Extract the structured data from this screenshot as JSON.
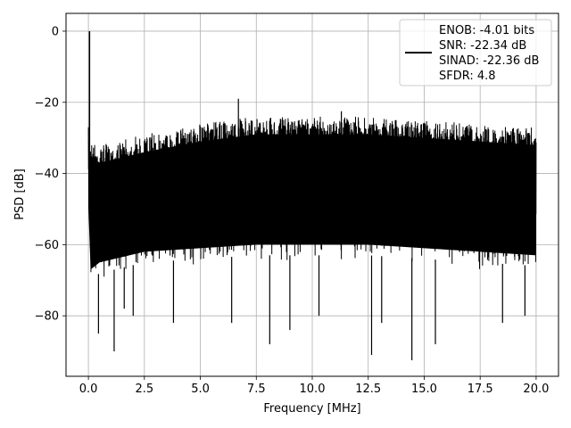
{
  "chart_data": {
    "type": "line",
    "xlabel": "Frequency [MHz]",
    "ylabel": "PSD [dB]",
    "xlim": [
      -1.0,
      21.0
    ],
    "ylim": [
      -97,
      5
    ],
    "xticks": [
      0.0,
      2.5,
      5.0,
      7.5,
      10.0,
      12.5,
      15.0,
      17.5,
      20.0
    ],
    "xtick_labels": [
      "0.0",
      "2.5",
      "5.0",
      "7.5",
      "10.0",
      "12.5",
      "15.0",
      "17.5",
      "20.0"
    ],
    "yticks": [
      0,
      -20,
      -40,
      -60,
      -80
    ],
    "ytick_labels": [
      "0",
      "−20",
      "−40",
      "−60",
      "−80"
    ],
    "grid": true,
    "legend_position": "top-right",
    "series": [
      {
        "name": "",
        "legend_lines": [
          "ENOB: -4.01 bits",
          "SNR: -22.34 dB",
          "SINAD: -22.36 dB",
          "SFDR: 4.8"
        ],
        "color": "#000000",
        "style": "dense noise floor spectrum",
        "fundamental": {
          "x": 0.05,
          "y": 0
        },
        "upper_envelope": {
          "x": [
            0.0,
            0.1,
            0.5,
            2.5,
            5.0,
            7.5,
            10.0,
            12.5,
            15.0,
            17.5,
            20.0
          ],
          "y": [
            -27,
            -30,
            -32,
            -29,
            -26,
            -24,
            -24,
            -24,
            -25,
            -26,
            -27
          ]
        },
        "lower_envelope": {
          "x": [
            0.0,
            0.1,
            0.5,
            2.5,
            5.0,
            7.5,
            10.0,
            12.5,
            15.0,
            17.5,
            20.0
          ],
          "y": [
            -55,
            -72,
            -70,
            -67,
            -66,
            -65,
            -65,
            -65,
            -66,
            -67,
            -68
          ]
        },
        "peaks": [
          {
            "x": 6.7,
            "y": -19
          },
          {
            "x": 11.3,
            "y": -22.5
          }
        ],
        "dips": [
          {
            "x": 0.45,
            "y": -85
          },
          {
            "x": 1.15,
            "y": -90
          },
          {
            "x": 1.6,
            "y": -78
          },
          {
            "x": 2.0,
            "y": -80
          },
          {
            "x": 3.8,
            "y": -82
          },
          {
            "x": 6.4,
            "y": -82
          },
          {
            "x": 8.1,
            "y": -88
          },
          {
            "x": 9.0,
            "y": -84
          },
          {
            "x": 10.3,
            "y": -80
          },
          {
            "x": 12.65,
            "y": -91
          },
          {
            "x": 13.1,
            "y": -82
          },
          {
            "x": 14.45,
            "y": -92.5
          },
          {
            "x": 15.5,
            "y": -88
          },
          {
            "x": 18.5,
            "y": -82
          },
          {
            "x": 19.5,
            "y": -80
          }
        ]
      }
    ]
  }
}
